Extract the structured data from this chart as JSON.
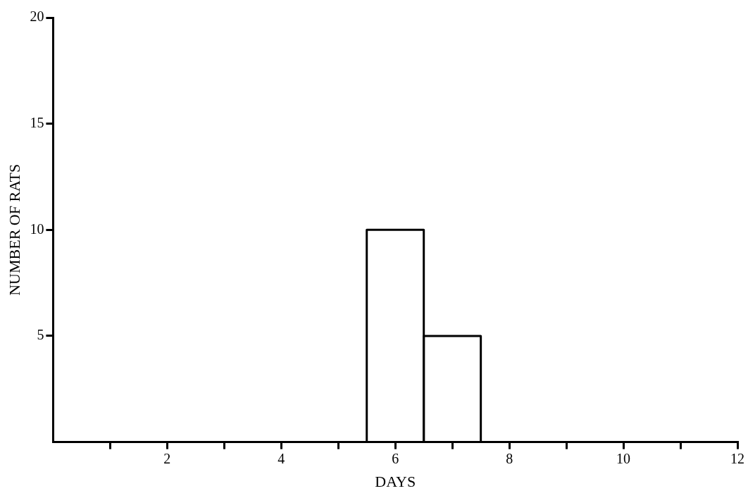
{
  "chart_data": {
    "type": "histogram",
    "bins": [
      5.5,
      6.5,
      7.5
    ],
    "values": [
      10,
      5
    ],
    "color": "#000000",
    "xlabel": "DAYS",
    "ylabel": "NUMBER OF RATS",
    "xlim": [
      0,
      12
    ],
    "xticks": [
      {
        "value": 1,
        "label": null
      },
      2,
      {
        "value": 3,
        "label": null
      },
      4,
      {
        "value": 5,
        "label": null
      },
      6,
      {
        "value": 7,
        "label": null
      },
      8,
      {
        "value": 9,
        "label": null
      },
      10,
      {
        "value": 11,
        "label": null
      },
      12
    ],
    "ylim": [
      0,
      20
    ],
    "yticks": [
      5,
      10,
      15,
      20
    ],
    "grid": false,
    "legend": false
  }
}
